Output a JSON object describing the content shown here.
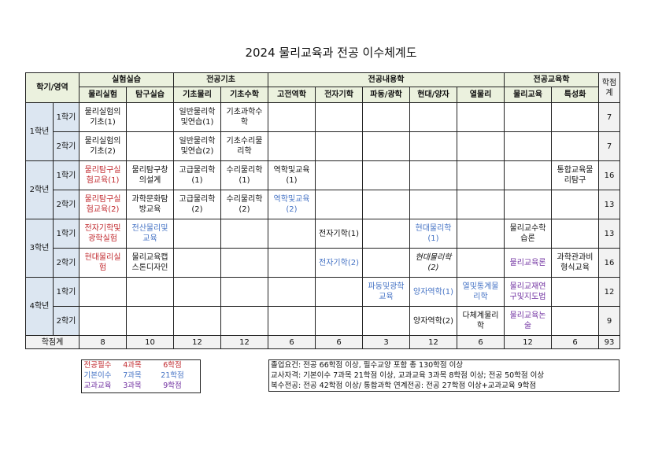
{
  "title": "2024 물리교육과 전공 이수체계도",
  "colors": {
    "required": "#c0282d",
    "basic": "#4472c4",
    "subject": "#7030a0",
    "header_fill": "#ebf1de",
    "year_fill": "#dce6f1"
  },
  "header": {
    "corner": "학기/영역",
    "credit_total": "학점\n계",
    "groups": [
      {
        "label": "실험실습",
        "span": 2
      },
      {
        "label": "전공기초",
        "span": 2
      },
      {
        "label": "전공내용학",
        "span": 5
      },
      {
        "label": "전공교육학",
        "span": 2
      }
    ],
    "columns": [
      "물리실험",
      "탐구실습",
      "기초물리",
      "기초수학",
      "고전역학",
      "전자기학",
      "파동/광학",
      "현대/양자",
      "열물리",
      "물리교육",
      "특성화"
    ]
  },
  "years": [
    {
      "label": "1학년",
      "semesters": [
        {
          "label": "1학기",
          "credits": "7",
          "cells": [
            {
              "text": "물리실험의\n기초(1)"
            },
            {
              "text": ""
            },
            {
              "text": "일반물리학\n및연습(1)"
            },
            {
              "text": "기초과학수\n학"
            },
            {
              "text": ""
            },
            {
              "text": ""
            },
            {
              "text": ""
            },
            {
              "text": ""
            },
            {
              "text": ""
            },
            {
              "text": ""
            },
            {
              "text": ""
            }
          ]
        },
        {
          "label": "2학기",
          "credits": "7",
          "cells": [
            {
              "text": "물리실험의\n기초(2)"
            },
            {
              "text": ""
            },
            {
              "text": "일반물리학\n및연습(2)"
            },
            {
              "text": "기초수리물\n리학"
            },
            {
              "text": ""
            },
            {
              "text": ""
            },
            {
              "text": ""
            },
            {
              "text": ""
            },
            {
              "text": ""
            },
            {
              "text": ""
            },
            {
              "text": ""
            }
          ]
        }
      ]
    },
    {
      "label": "2학년",
      "semesters": [
        {
          "label": "1학기",
          "credits": "16",
          "cells": [
            {
              "text": "물리탐구실\n험교육(1)",
              "kind": "required"
            },
            {
              "text": "물리탐구창\n의설계"
            },
            {
              "text": "고급물리학\n(1)"
            },
            {
              "text": "수리물리학\n(1)"
            },
            {
              "text": "역학및교육\n(1)"
            },
            {
              "text": ""
            },
            {
              "text": ""
            },
            {
              "text": ""
            },
            {
              "text": ""
            },
            {
              "text": ""
            },
            {
              "text": "통합교육물\n리탐구"
            }
          ]
        },
        {
          "label": "2학기",
          "credits": "13",
          "cells": [
            {
              "text": "물리탐구실\n험교육(2)",
              "kind": "required"
            },
            {
              "text": "과학문화탐\n방교육"
            },
            {
              "text": "고급물리학\n(2)"
            },
            {
              "text": "수리물리학\n(2)"
            },
            {
              "text": "역학및교육\n(2)",
              "kind": "basic"
            },
            {
              "text": ""
            },
            {
              "text": ""
            },
            {
              "text": ""
            },
            {
              "text": ""
            },
            {
              "text": ""
            },
            {
              "text": ""
            }
          ]
        }
      ]
    },
    {
      "label": "3학년",
      "semesters": [
        {
          "label": "1학기",
          "credits": "13",
          "cells": [
            {
              "text": "전자기학및\n광학실험",
              "kind": "required"
            },
            {
              "text": "전산물리및\n교육",
              "kind": "basic"
            },
            {
              "text": ""
            },
            {
              "text": ""
            },
            {
              "text": ""
            },
            {
              "text": "전자기학(1)"
            },
            {
              "text": ""
            },
            {
              "text": "현대물리학\n(1)",
              "kind": "basic"
            },
            {
              "text": ""
            },
            {
              "text": "물리교수학\n습론"
            },
            {
              "text": ""
            }
          ]
        },
        {
          "label": "2학기",
          "credits": "16",
          "cells": [
            {
              "text": "현대물리실\n험",
              "kind": "required"
            },
            {
              "text": "물리교육캡\n스톤디자인"
            },
            {
              "text": ""
            },
            {
              "text": ""
            },
            {
              "text": ""
            },
            {
              "text": "전자기학(2)",
              "kind": "basic"
            },
            {
              "text": ""
            },
            {
              "text": "현대물리학\n(2)",
              "italic": true
            },
            {
              "text": ""
            },
            {
              "text": "물리교육론",
              "kind": "subject"
            },
            {
              "text": "과학관과비\n형식교육"
            }
          ]
        }
      ]
    },
    {
      "label": "4학년",
      "semesters": [
        {
          "label": "1학기",
          "credits": "12",
          "cells": [
            {
              "text": ""
            },
            {
              "text": ""
            },
            {
              "text": ""
            },
            {
              "text": ""
            },
            {
              "text": ""
            },
            {
              "text": ""
            },
            {
              "text": "파동및광학\n교육",
              "kind": "basic"
            },
            {
              "text": "양자역학(1)",
              "kind": "basic"
            },
            {
              "text": "열및통계물\n리학",
              "kind": "basic"
            },
            {
              "text": "물리교재연\n구및지도법",
              "kind": "subject"
            },
            {
              "text": ""
            }
          ]
        },
        {
          "label": "2학기",
          "credits": "9",
          "cells": [
            {
              "text": ""
            },
            {
              "text": ""
            },
            {
              "text": ""
            },
            {
              "text": ""
            },
            {
              "text": ""
            },
            {
              "text": ""
            },
            {
              "text": ""
            },
            {
              "text": "양자역학(2)"
            },
            {
              "text": "다체계물리\n학"
            },
            {
              "text": "물리교육논\n술",
              "kind": "subject"
            },
            {
              "text": ""
            }
          ]
        }
      ]
    }
  ],
  "totals": {
    "label": "학점계",
    "values": [
      "8",
      "10",
      "12",
      "12",
      "6",
      "6",
      "3",
      "12",
      "6",
      "12",
      "6"
    ],
    "grand": "93"
  },
  "legend": [
    {
      "category": "전공필수",
      "courses": "4과목",
      "credits": "6학점",
      "kind": "required"
    },
    {
      "category": "기본이수",
      "courses": "7과목",
      "credits": "21학점",
      "kind": "basic"
    },
    {
      "category": "교과교육",
      "courses": "3과목",
      "credits": "9학점",
      "kind": "subject"
    }
  ],
  "notes": [
    "졸업요건: 전공 66학점 이상, 필수교양 포함 총 130학점 이상",
    "교사자격: 기본이수 7과목 21학점 이상, 교과교육 3과목 8학점 이상; 전공 50학점 이상",
    "복수전공: 전공 42학점 이상/ 통합과학 연계전공: 전공 27학점 이상+교과교육 9학점"
  ]
}
